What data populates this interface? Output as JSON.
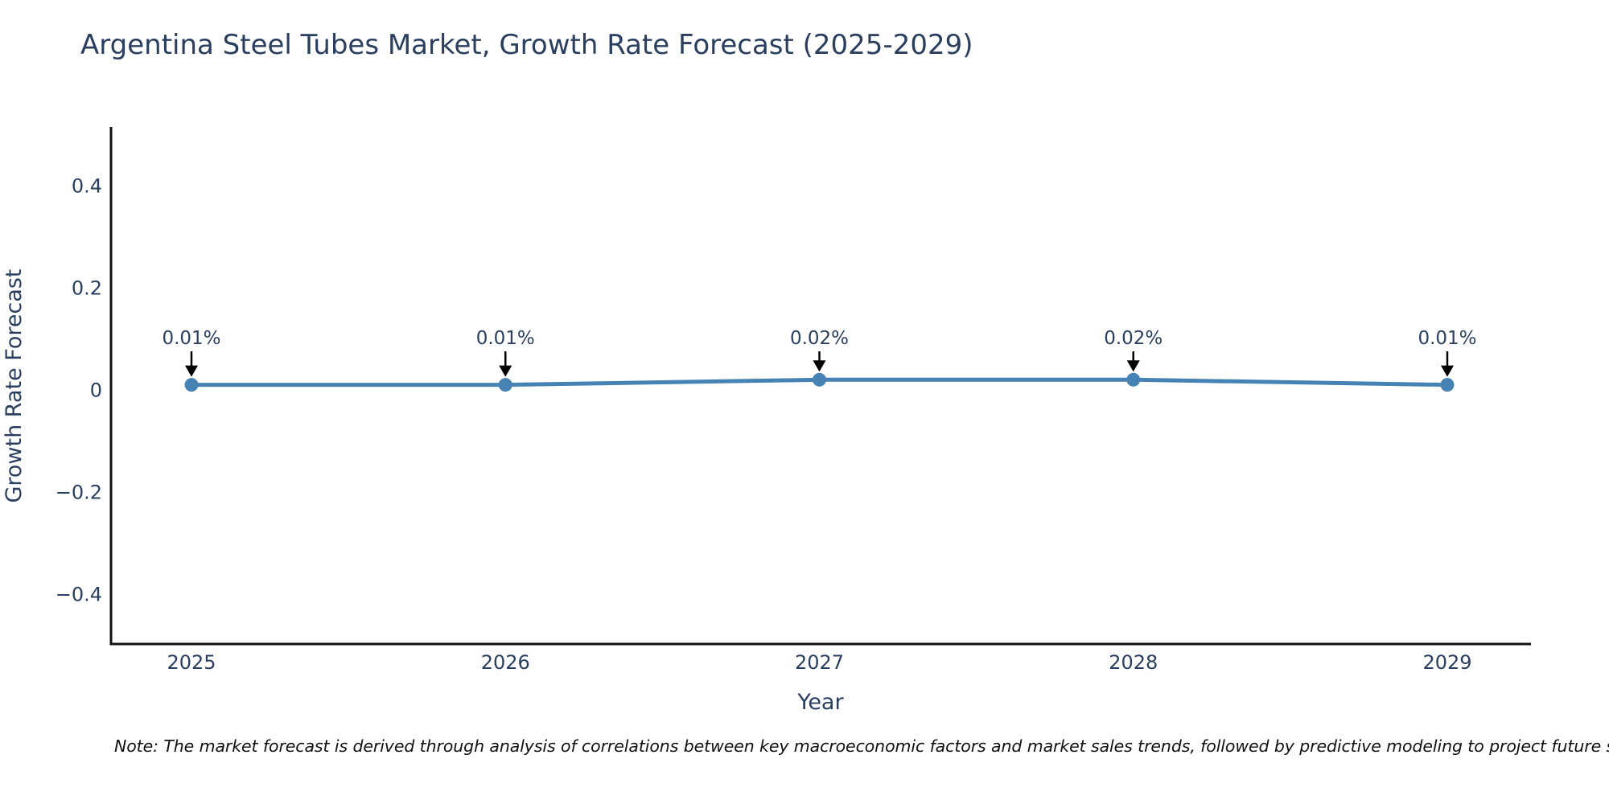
{
  "title": "Argentina Steel Tubes Market, Growth Rate Forecast (2025-2029)",
  "note": "Note: The market forecast is derived through analysis of correlations between key macroeconomic factors and market sales trends, followed by predictive modeling to project future sa",
  "chart_data": {
    "type": "line",
    "title": "Argentina Steel Tubes Market, Growth Rate Forecast (2025-2029)",
    "xlabel": "Year",
    "ylabel": "Growth Rate Forecast",
    "categories": [
      "2025",
      "2026",
      "2027",
      "2028",
      "2029"
    ],
    "values": [
      0.01,
      0.01,
      0.02,
      0.02,
      0.01
    ],
    "annotations": [
      "0.01%",
      "0.01%",
      "0.02%",
      "0.02%",
      "0.01%"
    ],
    "yticks": [
      0.4,
      0.2,
      0,
      -0.2,
      -0.4
    ],
    "ytick_labels": [
      "0.4",
      "0.2",
      "0",
      "−0.2",
      "−0.4"
    ],
    "ylim": [
      -0.5,
      0.52
    ],
    "grid": false,
    "legend": "none",
    "line_color": "#4682B4",
    "marker_color": "#4682B4",
    "arrow_color": "#000000",
    "axis_color": "#111111",
    "text_color": "#2a3f5f",
    "background_color": "#ffffff"
  }
}
